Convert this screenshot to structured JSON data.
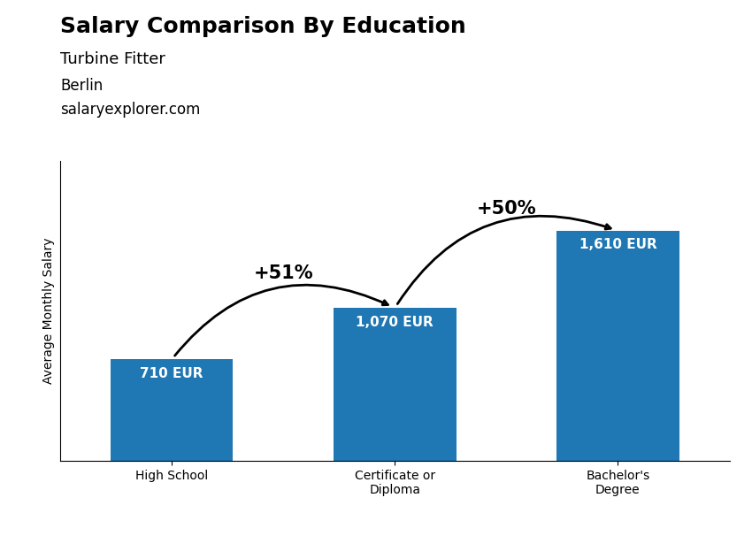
{
  "chart_data": {
    "type": "bar",
    "title": "Salary Comparison By Education",
    "subtitle": "Turbine Fitter",
    "y_label": "Average Monthly Salary",
    "categories": [
      "High School",
      "Certificate or\nDiploma",
      "Bachelor's\nDegree"
    ],
    "values": [
      710,
      1070,
      1610
    ],
    "value_labels": [
      "710 EUR",
      "1,070 EUR",
      "1,610 EUR"
    ],
    "data_labels": true,
    "ylim": [
      0,
      2100
    ],
    "yticks": [],
    "tick_labels": "x",
    "grid": false,
    "annotations": [
      {
        "text": "Berlin"
      },
      {
        "text": "salaryexplorer.com"
      },
      {
        "text": "+51%",
        "from": "High School",
        "to": "Certificate or\nDiploma"
      },
      {
        "text": "+50%",
        "from": "Certificate or\nDiploma",
        "to": "Bachelor's\nDegree"
      }
    ]
  }
}
